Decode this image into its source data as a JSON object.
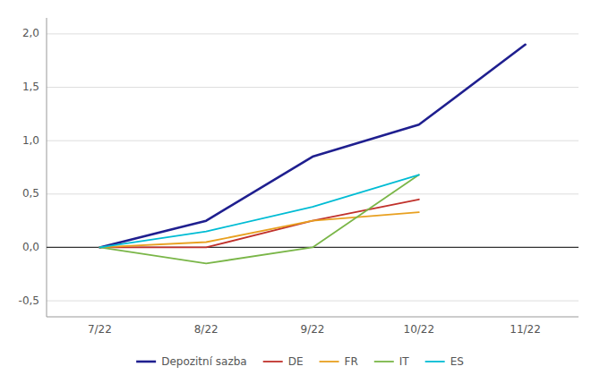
{
  "chart_data": {
    "type": "line",
    "categories": [
      "7/22",
      "8/22",
      "9/22",
      "10/22",
      "11/22"
    ],
    "series": [
      {
        "name": "Depozitní sazba",
        "color": "#1f1f8f",
        "values": [
          0.0,
          0.25,
          0.85,
          1.15,
          1.9
        ]
      },
      {
        "name": "DE",
        "color": "#c0312b",
        "values": [
          0.0,
          0.0,
          0.25,
          0.45,
          null
        ]
      },
      {
        "name": "FR",
        "color": "#e8a020",
        "values": [
          0.0,
          0.05,
          0.25,
          0.33,
          null
        ]
      },
      {
        "name": "IT",
        "color": "#7ab648",
        "values": [
          0.0,
          -0.15,
          0.0,
          0.68,
          null
        ]
      },
      {
        "name": "ES",
        "color": "#00bcd4",
        "values": [
          0.0,
          0.15,
          0.38,
          0.68,
          null
        ]
      }
    ],
    "ylim": [
      -0.65,
      2.15
    ],
    "yticks": [
      {
        "value": -0.5,
        "label": "-0,5"
      },
      {
        "value": 0.0,
        "label": "0,0"
      },
      {
        "value": 0.5,
        "label": "0,5"
      },
      {
        "value": 1.0,
        "label": "1,0"
      },
      {
        "value": 1.5,
        "label": "1,5"
      },
      {
        "value": 2.0,
        "label": "2,0"
      }
    ],
    "grid": true,
    "legend": "bottom"
  }
}
